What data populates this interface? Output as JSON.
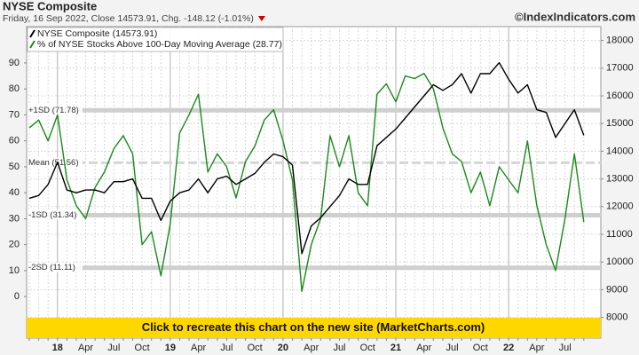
{
  "chart_data": {
    "type": "line",
    "title": "NYSE Composite",
    "subtitle": "Friday, 16 Sep 2022, Close 14573.91, Chg. -148.12 (-1.01%)",
    "watermark": "©IndexIndicators.com",
    "banner": "Click to recreate this chart on the new site (MarketCharts.com)",
    "categories": [
      null,
      null,
      null,
      "18",
      null,
      null,
      "Apr",
      null,
      null,
      "Jul",
      null,
      null,
      "Oct",
      null,
      null,
      "19",
      null,
      null,
      "Apr",
      null,
      null,
      "Jul",
      null,
      null,
      "Oct",
      null,
      null,
      "20",
      null,
      null,
      "Apr",
      null,
      null,
      "Jul",
      null,
      null,
      "Oct",
      null,
      null,
      "21",
      null,
      null,
      "Apr",
      null,
      null,
      "Jul",
      null,
      null,
      "Oct",
      null,
      null,
      "22",
      null,
      null,
      "Apr",
      null,
      null,
      "Jul",
      null,
      null
    ],
    "series": [
      {
        "name": "NYSE Composite (14573.91)",
        "color": "#000000",
        "axis": "y2",
        "values": [
          12300,
          12400,
          12800,
          13600,
          12600,
          12500,
          12600,
          12600,
          12500,
          12900,
          12900,
          13000,
          12300,
          12300,
          11500,
          12200,
          12500,
          12600,
          13000,
          12500,
          13000,
          13100,
          12800,
          13000,
          13200,
          13600,
          13900,
          13800,
          13500,
          10300,
          11300,
          11600,
          12000,
          12400,
          13000,
          12800,
          12800,
          14200,
          14500,
          14800,
          15200,
          15600,
          16000,
          16400,
          16200,
          16400,
          16800,
          16100,
          16800,
          16800,
          17200,
          16600,
          16100,
          16400,
          15500,
          15400,
          14500,
          15000,
          15500,
          14573.91
        ]
      },
      {
        "name": "% of NYSE Stocks Above 100-Day Moving Average (28.77)",
        "color": "#1a8a1a",
        "values": [
          65,
          68,
          60,
          70,
          45,
          35,
          30,
          42,
          48,
          57,
          62,
          55,
          20,
          25,
          8,
          28,
          63,
          70,
          78,
          48,
          55,
          50,
          38,
          52,
          58,
          68,
          72,
          60,
          45,
          2,
          20,
          30,
          62,
          50,
          62,
          40,
          35,
          78,
          82,
          75,
          85,
          84,
          86,
          80,
          65,
          55,
          52,
          40,
          48,
          35,
          50,
          45,
          40,
          60,
          35,
          20,
          10,
          30,
          55,
          28.77
        ]
      }
    ],
    "ylim": [
      -16,
      104
    ],
    "yticks": [
      0,
      10,
      20,
      30,
      40,
      50,
      60,
      70,
      80,
      90
    ],
    "y2lim": [
      7250,
      18500
    ],
    "y2ticks": [
      8000,
      9000,
      10000,
      11000,
      12000,
      13000,
      14000,
      15000,
      16000,
      17000,
      18000
    ],
    "bands": [
      {
        "label": "+1SD (71.78)",
        "value": 71.78
      },
      {
        "label": "Mean (51.56)",
        "value": 51.56
      },
      {
        "label": "-1SD (31.34)",
        "value": 31.34
      },
      {
        "label": "-2SD (11.11)",
        "value": 11.11
      }
    ],
    "grid": true
  }
}
